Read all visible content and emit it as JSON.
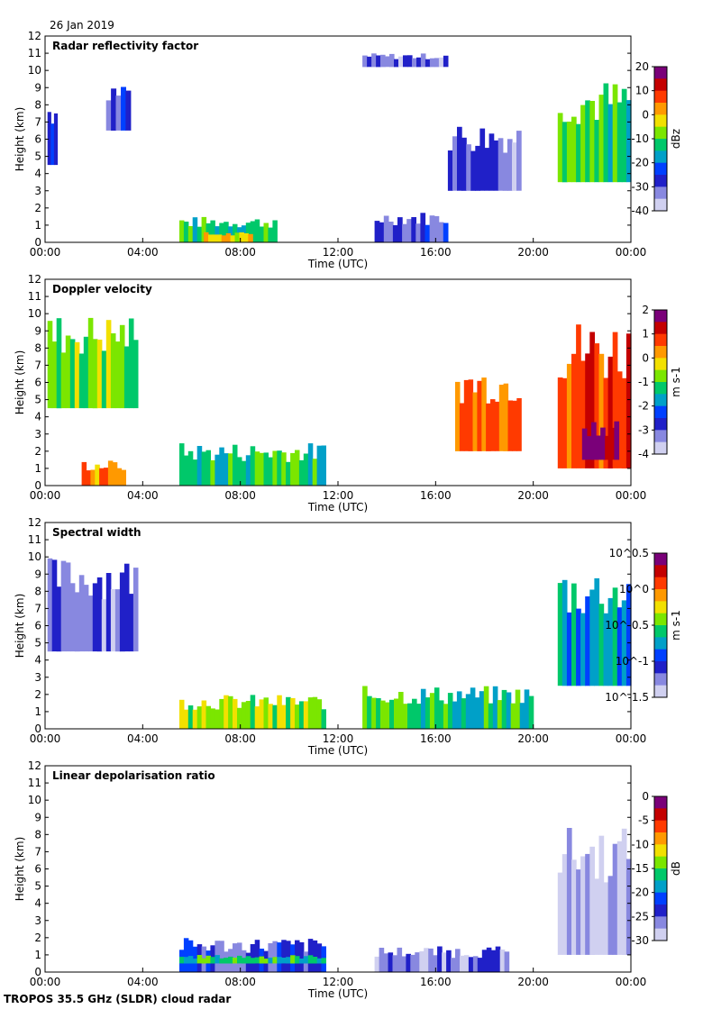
{
  "header": {
    "date": "26 Jan 2019"
  },
  "footer": {
    "caption": "TROPOS 35.5 GHz (SLDR) cloud radar"
  },
  "colors": {
    "colormap": [
      "#7a0079",
      "#c40000",
      "#ff3a00",
      "#ff9900",
      "#f2e000",
      "#7be600",
      "#00c86a",
      "#00a0c8",
      "#0040ff",
      "#2020c8",
      "#8888e0",
      "#d0d0f0"
    ],
    "noise": "#d8d8d8"
  },
  "chart_data": [
    {
      "type": "heatmap",
      "title": "Radar reflectivity factor",
      "xlabel": "Time (UTC)",
      "ylabel": "Height (km)",
      "x_ticks": [
        "00:00",
        "04:00",
        "08:00",
        "12:00",
        "16:00",
        "20:00",
        "00:00"
      ],
      "xlim_hours": [
        0,
        24
      ],
      "ylim": [
        0,
        12
      ],
      "y_ticks": [
        0,
        1,
        2,
        3,
        4,
        5,
        6,
        7,
        8,
        9,
        10,
        11,
        12
      ],
      "colorbar": {
        "label": "dBz",
        "ticks": [
          "20",
          "10",
          "0",
          "-10",
          "-20",
          "-30",
          "-40"
        ],
        "range": [
          -40,
          20
        ]
      },
      "features": [
        {
          "t0": 0.1,
          "t1": 0.5,
          "h0": 4.5,
          "h1": 8.5,
          "v": 0.75
        },
        {
          "t0": 2.5,
          "t1": 3.5,
          "h0": 6.5,
          "h1": 9.5,
          "v": 0.8
        },
        {
          "t0": 5.5,
          "t1": 9.5,
          "h0": 0,
          "h1": 1.5,
          "v": 0.55
        },
        {
          "t0": 6.5,
          "t1": 8.5,
          "h0": 0,
          "h1": 0.6,
          "v": 0.35
        },
        {
          "t0": 13.5,
          "t1": 16.5,
          "h0": 0,
          "h1": 1.8,
          "v": 0.8
        },
        {
          "t0": 16.5,
          "t1": 19.5,
          "h0": 3,
          "h1": 7,
          "v": 0.85
        },
        {
          "t0": 21,
          "t1": 24,
          "h0": 3.5,
          "h1": 9.5,
          "v": 0.5
        },
        {
          "t0": 13,
          "t1": 16.5,
          "h0": 10.2,
          "h1": 11,
          "v": 0.85
        }
      ]
    },
    {
      "type": "heatmap",
      "title": "Doppler velocity",
      "xlabel": "Time (UTC)",
      "ylabel": "Height (km)",
      "x_ticks": [
        "00:00",
        "04:00",
        "08:00",
        "12:00",
        "16:00",
        "20:00",
        "00:00"
      ],
      "xlim_hours": [
        0,
        24
      ],
      "ylim": [
        0,
        12
      ],
      "y_ticks": [
        0,
        1,
        2,
        3,
        4,
        5,
        6,
        7,
        8,
        9,
        10,
        11,
        12
      ],
      "colorbar": {
        "label": "m s-1",
        "ticks": [
          "2",
          "1",
          "0",
          "-1",
          "-2",
          "-3",
          "-4"
        ],
        "range": [
          -4,
          2
        ]
      },
      "features": [
        {
          "t0": 0.1,
          "t1": 3.8,
          "h0": 4.5,
          "h1": 10,
          "v": 0.5
        },
        {
          "t0": 1.5,
          "t1": 3.3,
          "h0": 0,
          "h1": 1.5,
          "v": 0.25
        },
        {
          "t0": 5.5,
          "t1": 11.5,
          "h0": 0,
          "h1": 2.5,
          "v": 0.55
        },
        {
          "t0": 16.8,
          "t1": 19.5,
          "h0": 2,
          "h1": 7,
          "v": 0.25
        },
        {
          "t0": 21,
          "t1": 24,
          "h0": 1,
          "h1": 9.8,
          "v": 0.2
        },
        {
          "t0": 22,
          "t1": 23.5,
          "h0": 1.5,
          "h1": 4,
          "v": 0.05
        }
      ]
    },
    {
      "type": "heatmap",
      "title": "Spectral width",
      "xlabel": "Time (UTC)",
      "ylabel": "Height (km)",
      "x_ticks": [
        "00:00",
        "04:00",
        "08:00",
        "12:00",
        "16:00",
        "20:00",
        "00:00"
      ],
      "xlim_hours": [
        0,
        24
      ],
      "ylim": [
        0,
        12
      ],
      "y_ticks": [
        0,
        1,
        2,
        3,
        4,
        5,
        6,
        7,
        8,
        9,
        10,
        11,
        12
      ],
      "colorbar": {
        "label": "m s-1",
        "ticks": [
          "10^0.5",
          "10^0",
          "10^-0.5",
          "10^-1",
          "10^-1.5"
        ],
        "range_log10": [
          -1.5,
          0.5
        ]
      },
      "features": [
        {
          "t0": 0.1,
          "t1": 3.8,
          "h0": 4.5,
          "h1": 10,
          "v": 0.85
        },
        {
          "t0": 5.5,
          "t1": 11.5,
          "h0": 0,
          "h1": 2,
          "v": 0.45
        },
        {
          "t0": 13,
          "t1": 20,
          "h0": 0,
          "h1": 2.5,
          "v": 0.55
        },
        {
          "t0": 21,
          "t1": 24,
          "h0": 2.5,
          "h1": 9.5,
          "v": 0.65
        }
      ]
    },
    {
      "type": "heatmap",
      "title": "Linear depolarisation ratio",
      "xlabel": "Time (UTC)",
      "ylabel": "Height (km)",
      "x_ticks": [
        "00:00",
        "04:00",
        "08:00",
        "12:00",
        "16:00",
        "20:00",
        "00:00"
      ],
      "xlim_hours": [
        0,
        24
      ],
      "ylim": [
        0,
        12
      ],
      "y_ticks": [
        0,
        1,
        2,
        3,
        4,
        5,
        6,
        7,
        8,
        9,
        10,
        11,
        12
      ],
      "colorbar": {
        "label": "dB",
        "ticks": [
          "0",
          "-5",
          "-10",
          "-15",
          "-20",
          "-25",
          "-30"
        ],
        "range": [
          -30,
          0
        ]
      },
      "features": [
        {
          "t0": 5.5,
          "t1": 11.5,
          "h0": 0,
          "h1": 2,
          "v": 0.8
        },
        {
          "t0": 5.5,
          "t1": 11.5,
          "h0": 0.5,
          "h1": 1,
          "v": 0.55
        },
        {
          "t0": 21,
          "t1": 24,
          "h0": 1,
          "h1": 8.5,
          "v": 0.95
        },
        {
          "t0": 13.5,
          "t1": 19,
          "h0": 0,
          "h1": 1.5,
          "v": 0.85
        }
      ]
    }
  ]
}
